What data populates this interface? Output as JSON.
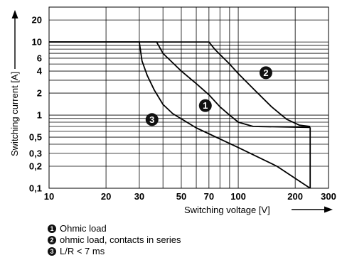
{
  "chart_data": {
    "type": "line",
    "xlabel": "Switching voltage [V]",
    "ylabel": "Switching current [A]",
    "xscale": "log",
    "yscale": "log",
    "xlim": [
      10,
      300
    ],
    "ylim": [
      0.1,
      30
    ],
    "grid": true,
    "xticks": [
      {
        "value": 10,
        "label": "10"
      },
      {
        "value": 20,
        "label": "20"
      },
      {
        "value": 30,
        "label": "30"
      },
      {
        "value": 50,
        "label": "50"
      },
      {
        "value": 70,
        "label": "70"
      },
      {
        "value": 100,
        "label": "100"
      },
      {
        "value": 200,
        "label": "200"
      },
      {
        "value": 300,
        "label": "300"
      }
    ],
    "yticks": [
      {
        "value": 0.1,
        "label": "0,1"
      },
      {
        "value": 0.2,
        "label": "0,2"
      },
      {
        "value": 0.3,
        "label": "0,3"
      },
      {
        "value": 0.5,
        "label": "0,5"
      },
      {
        "value": 1,
        "label": "1"
      },
      {
        "value": 2,
        "label": "2"
      },
      {
        "value": 4,
        "label": "4"
      },
      {
        "value": 6,
        "label": "6"
      },
      {
        "value": 10,
        "label": "10"
      },
      {
        "value": 20,
        "label": "20"
      }
    ],
    "xgrid": [
      10,
      20,
      30,
      40,
      50,
      60,
      70,
      80,
      90,
      100,
      200,
      300
    ],
    "ygrid": [
      0.1,
      0.2,
      0.3,
      0.4,
      0.5,
      0.6,
      0.7,
      0.8,
      0.9,
      1,
      2,
      3,
      4,
      5,
      6,
      7,
      8,
      9,
      10,
      20
    ],
    "series": [
      {
        "marker": "1",
        "points": [
          [
            10,
            10
          ],
          [
            37,
            10
          ],
          [
            40,
            7
          ],
          [
            50,
            4
          ],
          [
            60,
            2.7
          ],
          [
            70,
            1.9
          ],
          [
            80,
            1.3
          ],
          [
            90,
            1.0
          ],
          [
            100,
            0.8
          ],
          [
            120,
            0.7
          ],
          [
            240,
            0.68
          ]
        ]
      },
      {
        "marker": "2",
        "points": [
          [
            10,
            10
          ],
          [
            70,
            10
          ],
          [
            75,
            8
          ],
          [
            90,
            5
          ],
          [
            100,
            3.7
          ],
          [
            120,
            2.3
          ],
          [
            150,
            1.3
          ],
          [
            180,
            0.88
          ],
          [
            210,
            0.73
          ],
          [
            240,
            0.7
          ]
        ]
      },
      {
        "marker": "3",
        "points": [
          [
            10,
            10
          ],
          [
            30,
            10
          ],
          [
            31,
            5.5
          ],
          [
            33,
            3.5
          ],
          [
            36,
            2.2
          ],
          [
            40,
            1.4
          ],
          [
            45,
            1.05
          ],
          [
            60,
            0.67
          ],
          [
            100,
            0.36
          ],
          [
            160,
            0.2
          ],
          [
            240,
            0.1
          ],
          [
            240,
            0.68
          ]
        ]
      }
    ],
    "annotations": [
      {
        "text": "2",
        "x": 140,
        "y": 3.8
      },
      {
        "text": "1",
        "x": 67,
        "y": 1.35
      },
      {
        "text": "3",
        "x": 35,
        "y": 0.87
      }
    ]
  },
  "legend": [
    {
      "marker": "1",
      "label": "Ohmic load"
    },
    {
      "marker": "2",
      "label": "ohmic load, contacts in series"
    },
    {
      "marker": "3",
      "label": "L/R < 7 ms"
    }
  ]
}
